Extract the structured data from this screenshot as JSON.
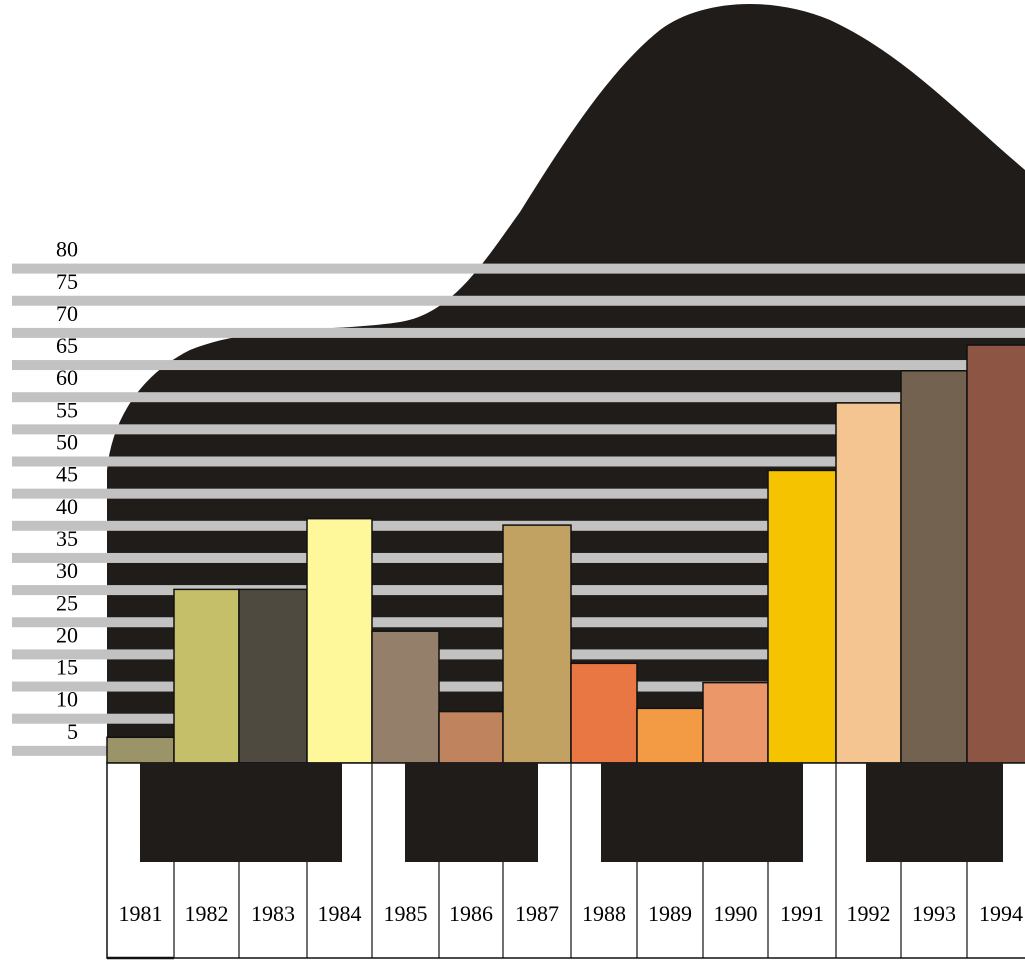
{
  "chart_data": {
    "type": "bar",
    "title": "",
    "xlabel": "",
    "ylabel": "",
    "categories": [
      "1981",
      "1982",
      "1983",
      "1984",
      "1985",
      "1986",
      "1987",
      "1988",
      "1989",
      "1990",
      "1991",
      "1992",
      "1993",
      "1994"
    ],
    "values": [
      4,
      27,
      27,
      38,
      20.5,
      8,
      37,
      15.5,
      8.5,
      12.5,
      45.5,
      56,
      61,
      65
    ],
    "colors": [
      "#9b9468",
      "#c6bf6a",
      "#4e4a40",
      "#fff89b",
      "#94806a",
      "#bf845d",
      "#c1a263",
      "#e87744",
      "#f29a44",
      "#eb976a",
      "#f6c300",
      "#f4c590",
      "#72624f",
      "#8d5544"
    ],
    "yticks": [
      5,
      10,
      15,
      20,
      25,
      30,
      35,
      40,
      45,
      50,
      55,
      60,
      65,
      70,
      75,
      80
    ],
    "ylim": [
      0,
      85
    ],
    "grid": true,
    "background": "piano",
    "legend": "none"
  }
}
